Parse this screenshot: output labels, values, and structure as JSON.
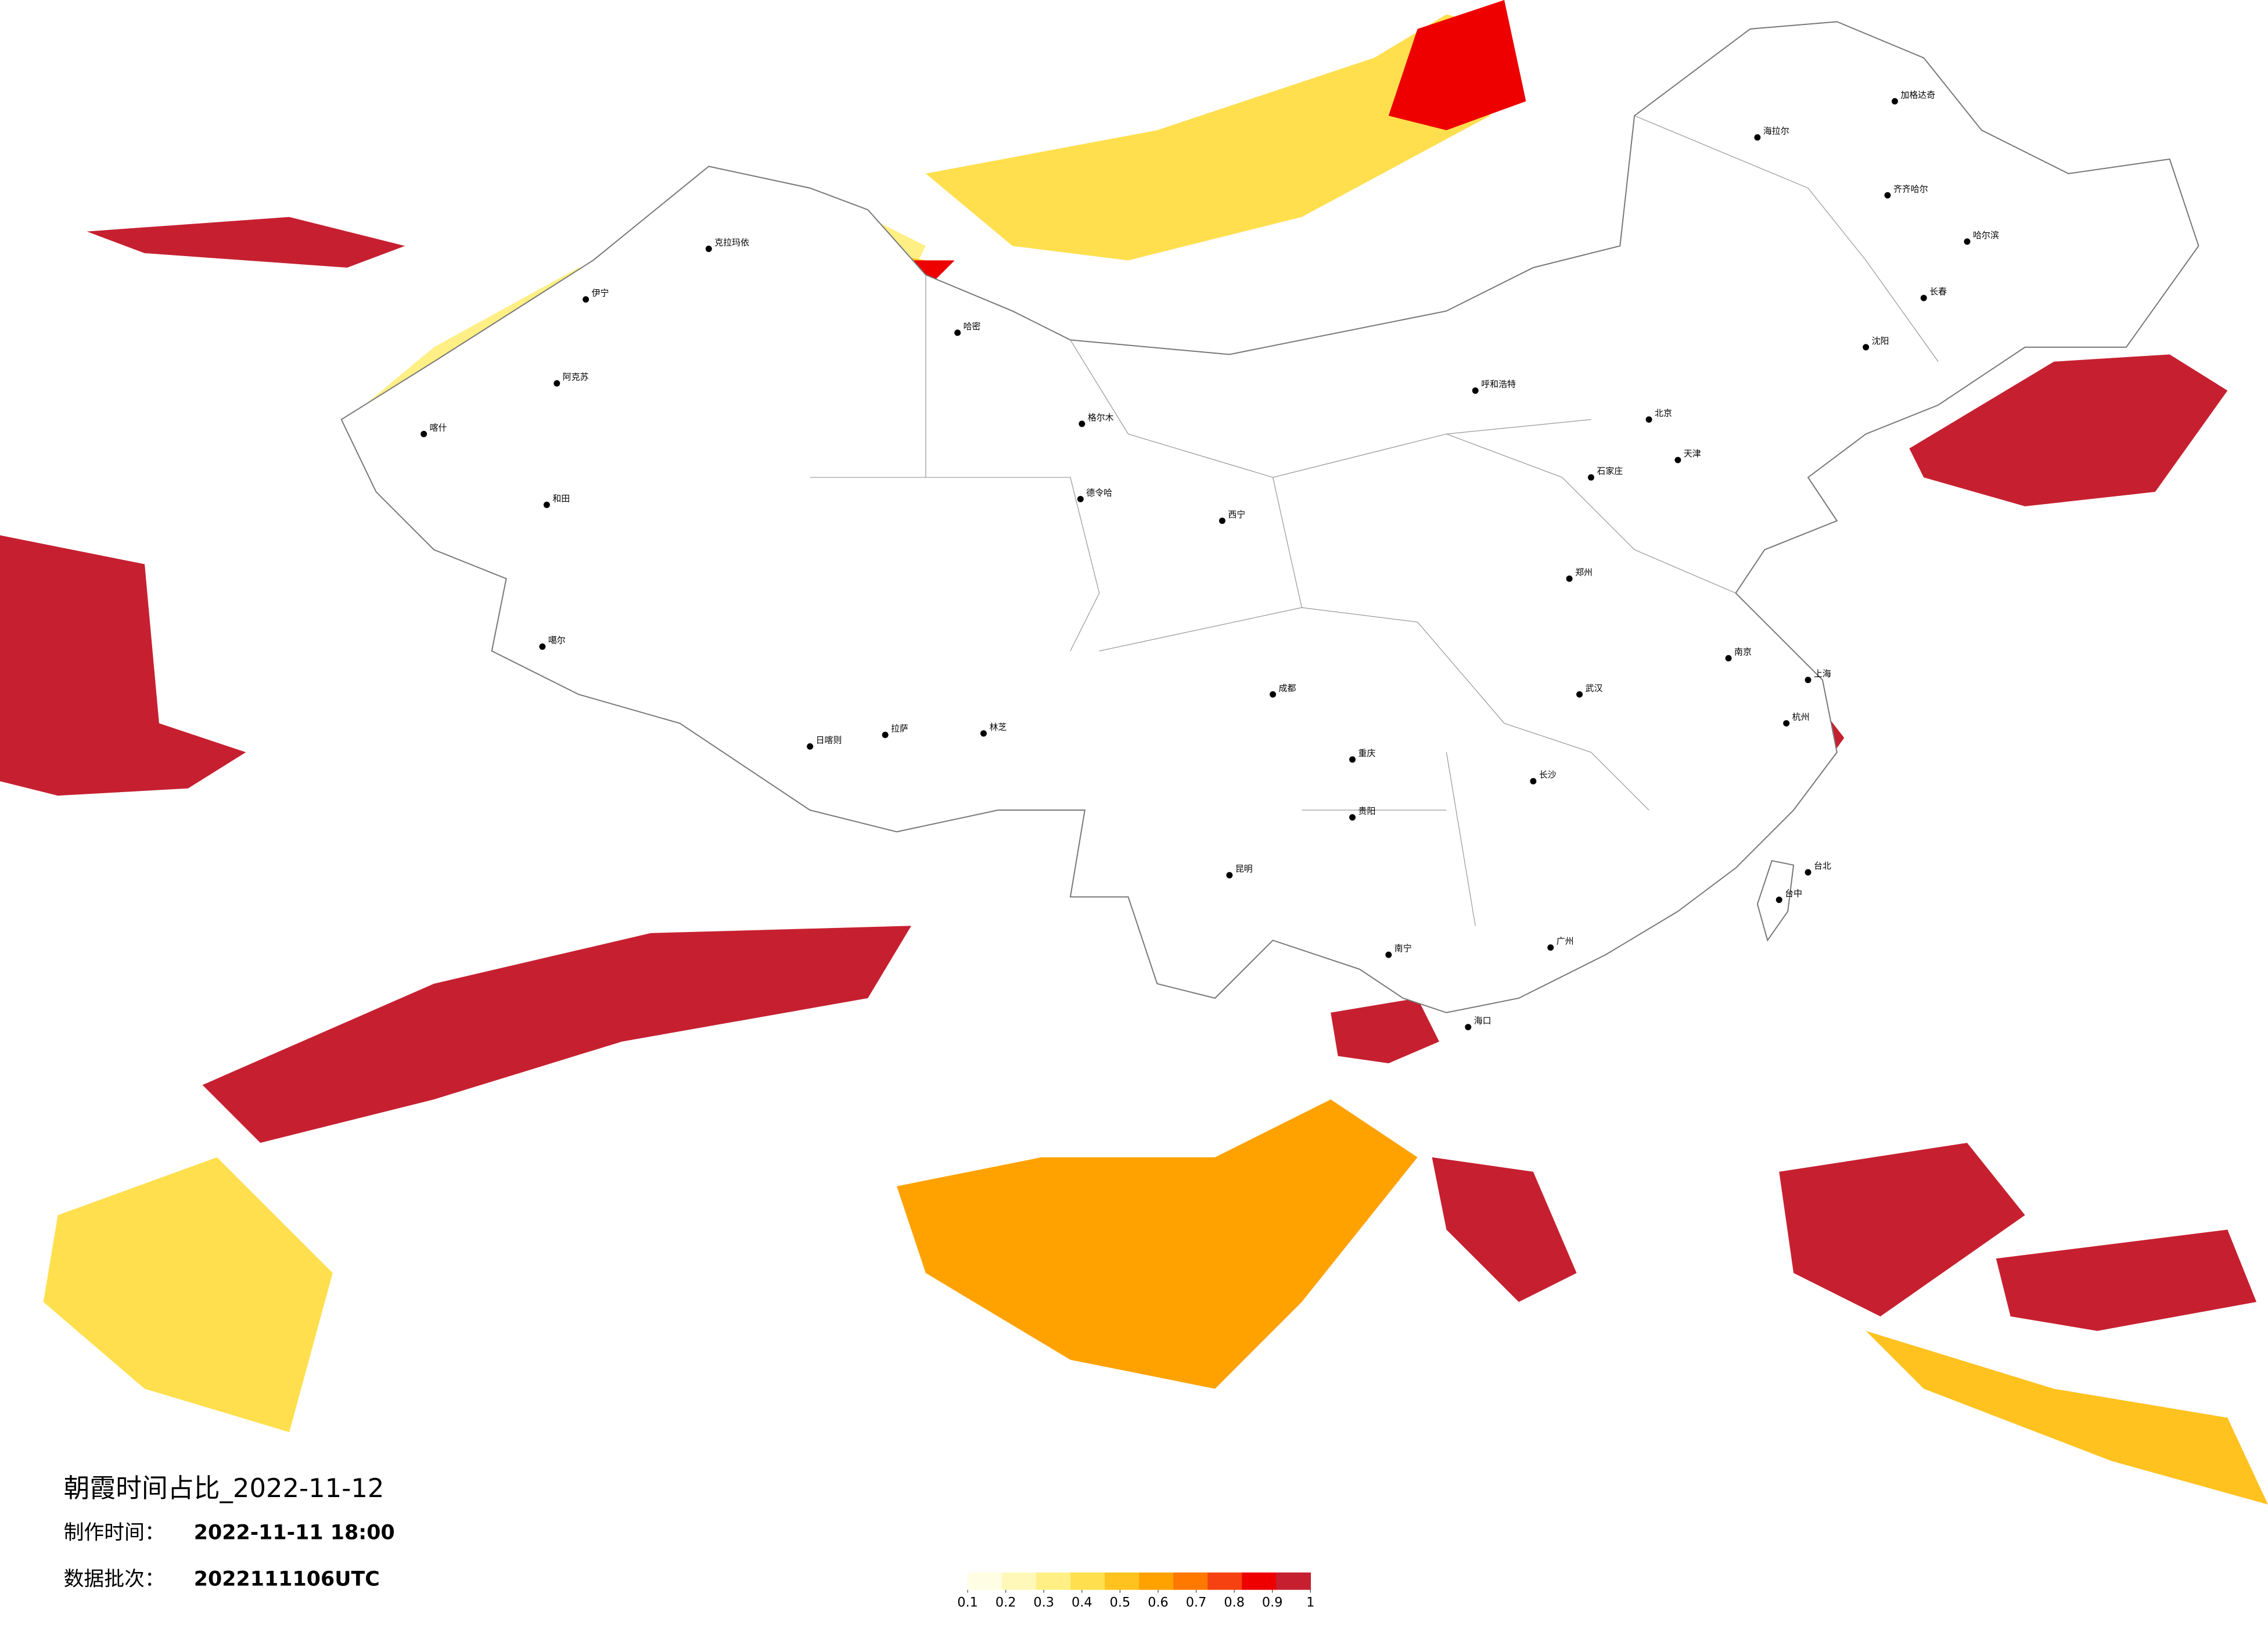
{
  "title": "朝霞时间占比_2022-11-12",
  "production_label": "制作时间：",
  "production_time": "2022-11-11 18:00",
  "batch_label": "数据批次：",
  "batch": "2022111106UTC",
  "colorbar": {
    "colors": [
      "#fffde3",
      "#fff8b8",
      "#ffef85",
      "#ffdf4d",
      "#ffc21f",
      "#ffa200",
      "#ff7800",
      "#f54210",
      "#ee0000",
      "#c62030"
    ],
    "ticks": [
      0.1,
      0.2,
      0.3,
      0.4,
      0.5,
      0.6,
      0.7,
      0.8,
      0.9,
      1
    ]
  },
  "cities": [
    "克拉玛依",
    "伊宁",
    "阿克苏",
    "和田",
    "喀什",
    "哈密",
    "噶尔",
    "日喀则",
    "拉萨",
    "林芝",
    "格尔木",
    "德令哈",
    "西宁",
    "呼和浩特",
    "北京",
    "天津",
    "石家庄",
    "郑州",
    "武汉",
    "上海",
    "杭州",
    "南京",
    "长沙",
    "广州",
    "重庆",
    "成都",
    "昆明",
    "贵阳",
    "南宁",
    "海口",
    "哈尔滨",
    "长春",
    "沈阳",
    "台北",
    "台中",
    "加格达奇",
    "海拉尔",
    "齐齐哈尔"
  ]
}
